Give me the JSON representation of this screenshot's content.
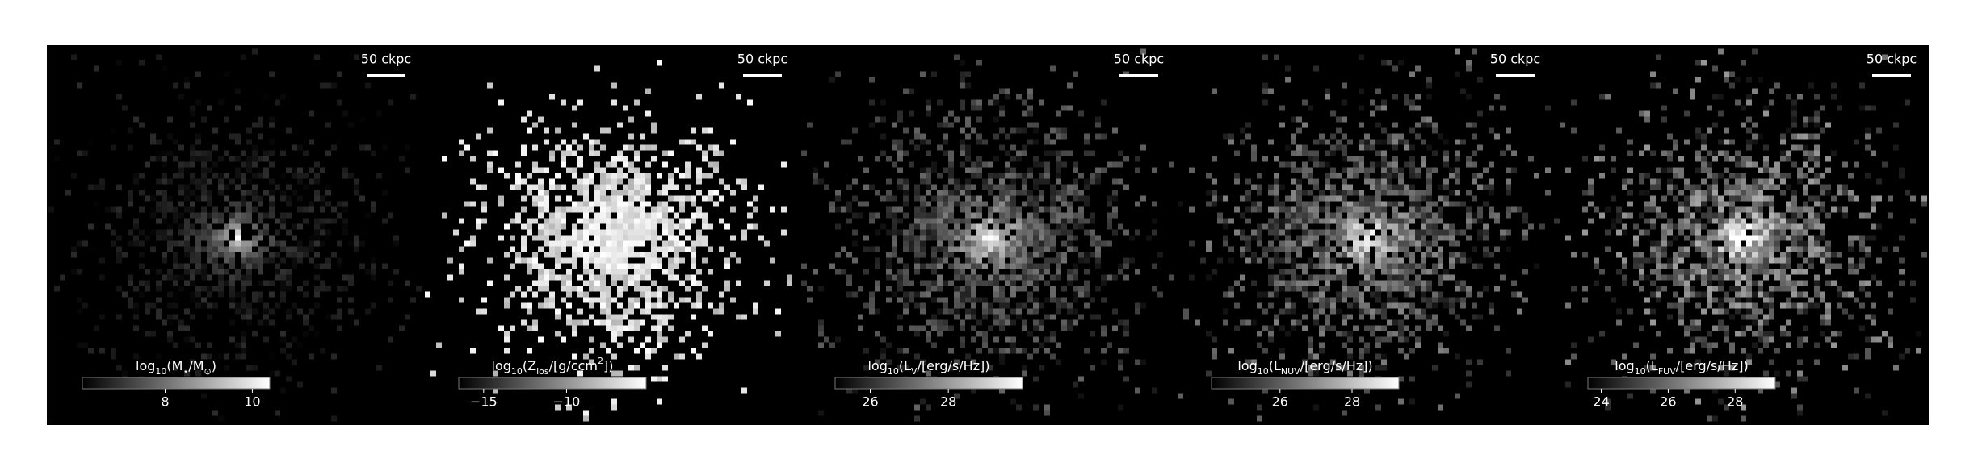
{
  "chart_data": [
    {
      "type": "image",
      "scale_bar": "50 ckpc",
      "colorbar": {
        "label": [
          {
            "t": "log"
          },
          {
            "t": "10",
            "s": "sub"
          },
          {
            "t": "(M"
          },
          {
            "t": "⋆",
            "s": "sub"
          },
          {
            "t": "/M"
          },
          {
            "t": "⊙",
            "s": "sub"
          },
          {
            "t": ")"
          }
        ],
        "lim": [
          6.1,
          10.4
        ],
        "ticks": [
          8,
          10
        ]
      }
    },
    {
      "type": "image",
      "scale_bar": "50 ckpc",
      "colorbar": {
        "label": [
          {
            "t": "log"
          },
          {
            "t": "10",
            "s": "sub"
          },
          {
            "t": "(Z"
          },
          {
            "t": "los",
            "s": "sub"
          },
          {
            "t": "/[g/ccm"
          },
          {
            "t": "2",
            "s": "sup"
          },
          {
            "t": "])"
          }
        ],
        "lim": [
          -16.5,
          -5.2
        ],
        "ticks": [
          {
            "value": -15,
            "label": "−15"
          },
          {
            "value": -10,
            "label": "−10"
          }
        ]
      }
    },
    {
      "type": "image",
      "scale_bar": "50 ckpc",
      "colorbar": {
        "label": [
          {
            "t": "log"
          },
          {
            "t": "10",
            "s": "sub"
          },
          {
            "t": "(L"
          },
          {
            "t": "V",
            "s": "sub"
          },
          {
            "t": "/[erg/s/Hz])"
          }
        ],
        "lim": [
          25.1,
          29.9
        ],
        "ticks": [
          26,
          28
        ]
      }
    },
    {
      "type": "image",
      "scale_bar": "50 ckpc",
      "colorbar": {
        "label": [
          {
            "t": "log"
          },
          {
            "t": "10",
            "s": "sub"
          },
          {
            "t": "(L"
          },
          {
            "t": "NUV",
            "s": "sub"
          },
          {
            "t": "/[erg/s/Hz])"
          }
        ],
        "lim": [
          24.1,
          29.3
        ],
        "ticks": [
          26,
          28
        ]
      }
    },
    {
      "type": "image",
      "scale_bar": "50 ckpc",
      "colorbar": {
        "label": [
          {
            "t": "log"
          },
          {
            "t": "10",
            "s": "sub"
          },
          {
            "t": "(L"
          },
          {
            "t": "FUV",
            "s": "sub"
          },
          {
            "t": "/[erg/s/Hz])"
          }
        ],
        "lim": [
          23.6,
          29.2
        ],
        "ticks": [
          24,
          26,
          28
        ]
      }
    }
  ]
}
